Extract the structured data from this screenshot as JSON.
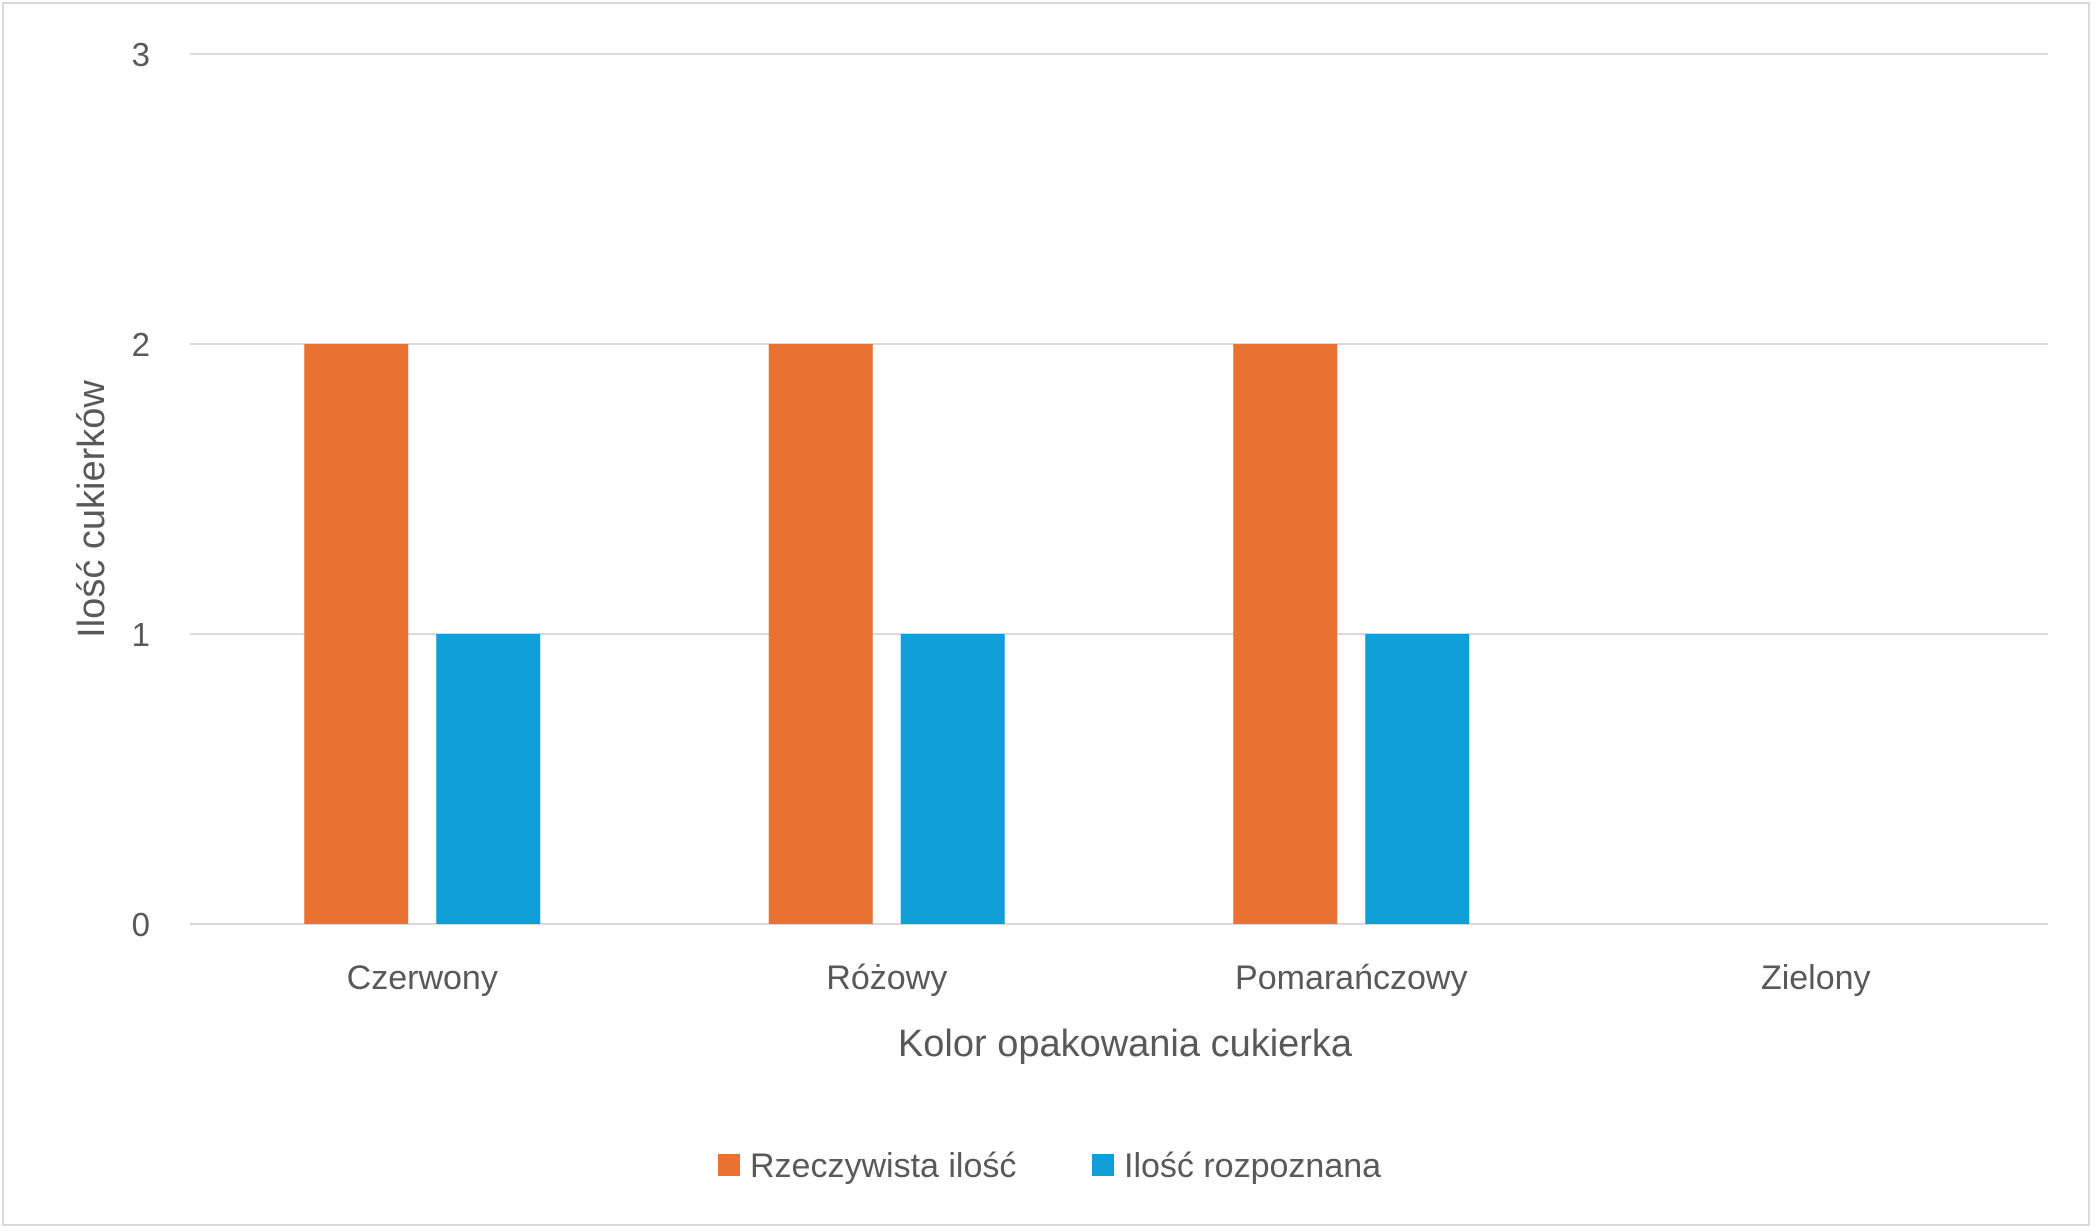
{
  "chart_data": {
    "type": "bar",
    "categories": [
      "Czerwony",
      "Różowy",
      "Pomarańczowy",
      "Zielony"
    ],
    "series": [
      {
        "name": "Rzeczywista ilość",
        "values": [
          2,
          2,
          2,
          0
        ],
        "color": "#E97132"
      },
      {
        "name": "Ilość rozpoznana",
        "values": [
          1,
          1,
          1,
          0
        ],
        "color": "#0F9ED5"
      }
    ],
    "title": "",
    "xlabel": "Kolor opakowania cukierka",
    "ylabel": "Ilość cukierków",
    "ylim": [
      0,
      3
    ],
    "yticks": [
      "0",
      "1",
      "2",
      "3"
    ],
    "grid": true,
    "legend_position": "bottom",
    "gridline_color": "#D9D9D9"
  }
}
